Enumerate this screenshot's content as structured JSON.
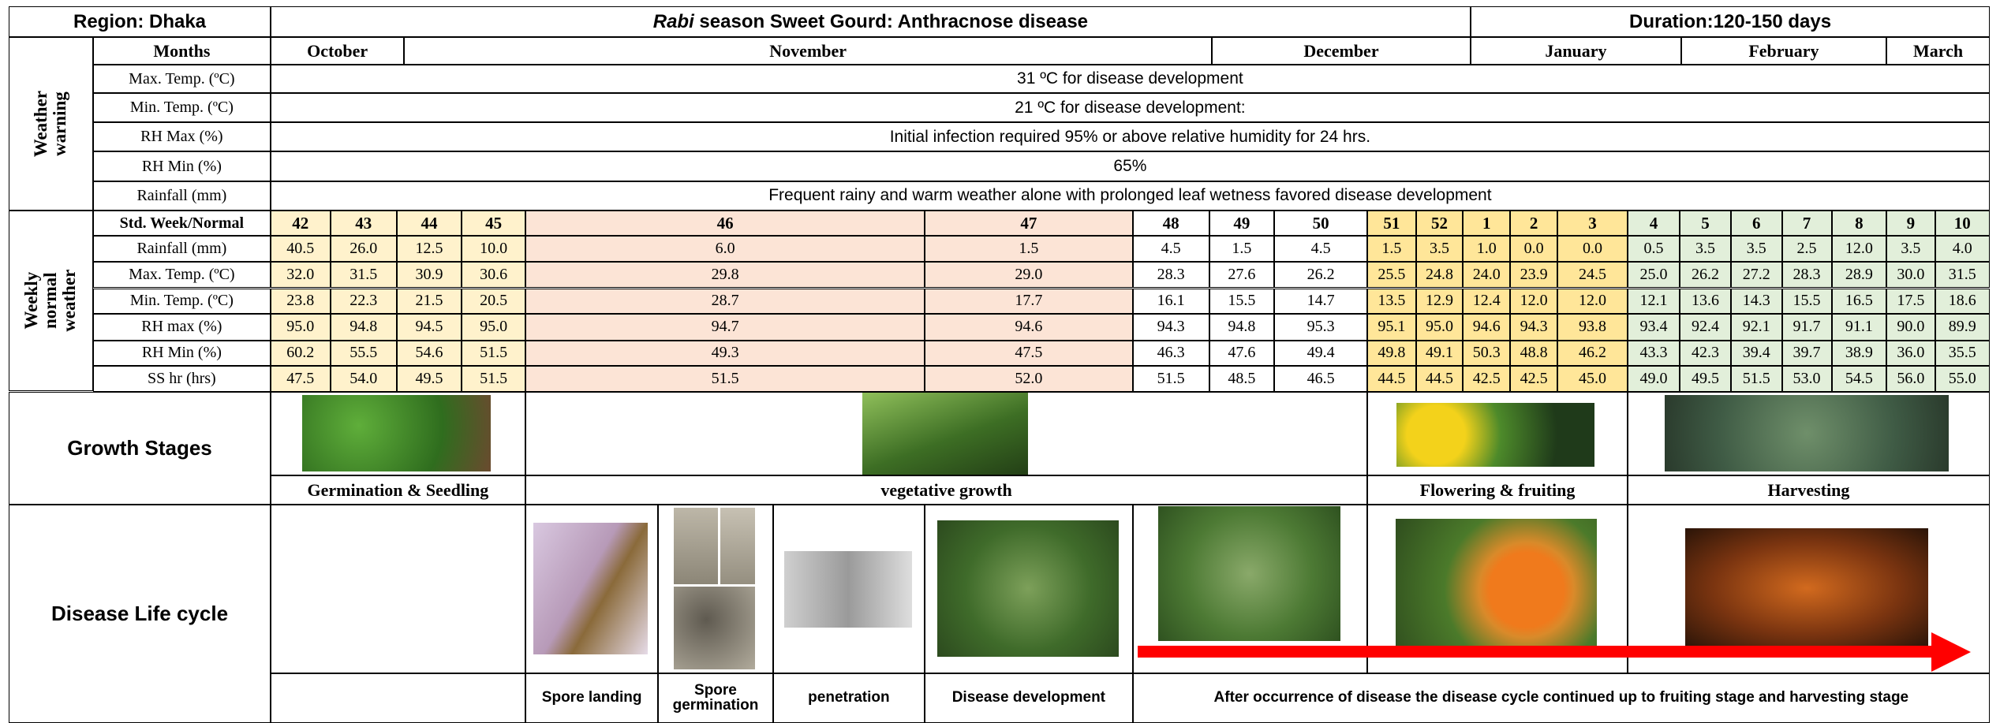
{
  "header": {
    "region": "Region: Dhaka",
    "title_italic": "Rabi",
    "title": " season Sweet Gourd: Anthracnose disease",
    "duration": "Duration:120-150 days"
  },
  "weather_warning": {
    "label": "Weather warning",
    "months_label": "Months",
    "months": [
      "October",
      "November",
      "December",
      "January",
      "February",
      "March"
    ],
    "rows": [
      {
        "label": "Max. Temp. (ºC)",
        "text": "31 ºC for disease development"
      },
      {
        "label": "Min. Temp. (ºC)",
        "text": "21 ºC for disease development:"
      },
      {
        "label": "RH Max (%)",
        "text": "Initial infection required 95% or above relative humidity for 24 hrs."
      },
      {
        "label": "RH Min (%)",
        "text": "65%"
      },
      {
        "label": "Rainfall  (mm)",
        "text": "Frequent rainy and warm weather alone with prolonged leaf wetness favored disease development"
      }
    ]
  },
  "weekly_weather": {
    "label": "Weekly normal weather",
    "week_label": "Std. Week/Normal",
    "weeks": [
      "42",
      "43",
      "44",
      "45",
      "46",
      "47",
      "48",
      "49",
      "50",
      "51",
      "52",
      "1",
      "2",
      "3",
      "4",
      "5",
      "6",
      "7",
      "8",
      "9",
      "10"
    ],
    "rows": [
      {
        "label": "Rainfall (mm)",
        "values": [
          "40.5",
          "26.0",
          "12.5",
          "10.0",
          "6.0",
          "1.5",
          "4.5",
          "1.5",
          "4.5",
          "1.5",
          "3.5",
          "1.0",
          "0.0",
          "0.0",
          "0.5",
          "3.5",
          "3.5",
          "2.5",
          "12.0",
          "3.5",
          "4.0"
        ]
      },
      {
        "label": "Max. Temp. (ºC)",
        "values": [
          "32.0",
          "31.5",
          "30.9",
          "30.6",
          "29.8",
          "29.0",
          "28.3",
          "27.6",
          "26.2",
          "25.5",
          "24.8",
          "24.0",
          "23.9",
          "24.5",
          "25.0",
          "26.2",
          "27.2",
          "28.3",
          "28.9",
          "30.0",
          "31.5"
        ]
      },
      {
        "label": "Min. Temp. (ºC)",
        "values": [
          "23.8",
          "22.3",
          "21.5",
          "20.5",
          "28.7",
          "17.7",
          "16.1",
          "15.5",
          "14.7",
          "13.5",
          "12.9",
          "12.4",
          "12.0",
          "12.0",
          "12.1",
          "13.6",
          "14.3",
          "15.5",
          "16.5",
          "17.5",
          "18.6"
        ]
      },
      {
        "label": "RH max (%)",
        "values": [
          "95.0",
          "94.8",
          "94.5",
          "95.0",
          "94.7",
          "94.6",
          "94.3",
          "94.8",
          "95.3",
          "95.1",
          "95.0",
          "94.6",
          "94.3",
          "93.8",
          "93.4",
          "92.4",
          "92.1",
          "91.7",
          "91.1",
          "90.0",
          "89.9"
        ]
      },
      {
        "label": "RH Min (%)",
        "values": [
          "60.2",
          "55.5",
          "54.6",
          "51.5",
          "49.3",
          "47.5",
          "46.3",
          "47.6",
          "49.4",
          "49.8",
          "49.1",
          "50.3",
          "48.8",
          "46.2",
          "43.3",
          "42.3",
          "39.4",
          "39.7",
          "38.9",
          "36.0",
          "35.5"
        ]
      },
      {
        "label": "SS hr (hrs)",
        "values": [
          "47.5",
          "54.0",
          "49.5",
          "51.5",
          "51.5",
          "52.0",
          "51.5",
          "48.5",
          "46.5",
          "44.5",
          "44.5",
          "42.5",
          "42.5",
          "45.0",
          "49.0",
          "49.5",
          "51.5",
          "53.0",
          "54.5",
          "56.0",
          "55.0"
        ]
      }
    ]
  },
  "growth_stages": {
    "label": "Growth Stages",
    "stages": [
      "Germination & Seedling",
      "vegetative growth",
      "Flowering & fruiting",
      "Harvesting"
    ]
  },
  "disease_life_cycle": {
    "label": "Disease Life cycle",
    "steps": [
      "Spore landing",
      "Spore germination",
      "penetration",
      "Disease development",
      "After occurrence  of disease the disease cycle continued up to fruiting stage and harvesting stage"
    ]
  }
}
